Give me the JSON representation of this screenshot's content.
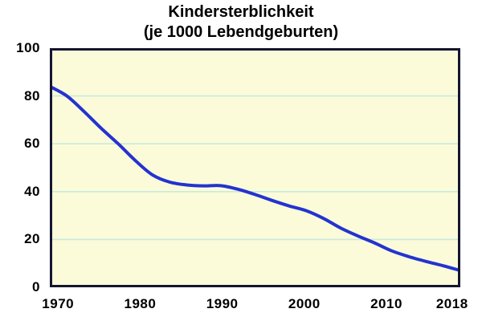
{
  "chart_data": {
    "type": "line",
    "title": "Kindersterblichkeit",
    "subtitle": "(je 1000 Lebendgeburten)",
    "xlabel": "",
    "ylabel": "",
    "x": [
      1970,
      1972,
      1974,
      1976,
      1978,
      1980,
      1982,
      1984,
      1986,
      1988,
      1990,
      1992,
      1994,
      1996,
      1998,
      2000,
      2002,
      2004,
      2006,
      2008,
      2010,
      2012,
      2014,
      2016,
      2018
    ],
    "series": [
      {
        "name": "Kindersterblichkeit je 1000 Lebendgeburten",
        "values": [
          84,
          80,
          73.5,
          66.5,
          60,
          53,
          47,
          44,
          42.8,
          42.4,
          42.5,
          41,
          38.8,
          36.3,
          34,
          32,
          28.8,
          24.8,
          21.5,
          18.5,
          15.2,
          12.8,
          10.8,
          9,
          7
        ]
      }
    ],
    "xlim": [
      1970,
      2018
    ],
    "ylim": [
      0,
      100
    ],
    "x_ticks": [
      "1970",
      "1980",
      "1990",
      "2000",
      "2010",
      "2018"
    ],
    "x_tick_years": [
      1970,
      1980,
      1990,
      2000,
      2010,
      2018
    ],
    "y_ticks": [
      "100",
      "80",
      "60",
      "40",
      "20",
      "0"
    ],
    "y_tick_values": [
      100,
      80,
      60,
      40,
      20,
      0
    ],
    "grid": "horizontal",
    "gridline_values": [
      20,
      40,
      60,
      80
    ],
    "legend": "none",
    "colors": {
      "line": "#2433cf",
      "plot_bg": "#fbfbd9",
      "grid": "#c9e9dd",
      "border": "#14152f",
      "text": "#000000",
      "page_bg": "#ffffff"
    }
  }
}
